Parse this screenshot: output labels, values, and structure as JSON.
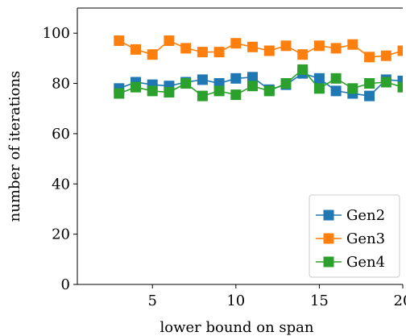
{
  "chart_data": {
    "type": "line",
    "xlabel": "lower bound on span",
    "ylabel": "number of iterations",
    "xlim": [
      0.5,
      20
    ],
    "ylim": [
      0,
      110
    ],
    "xticks": [
      5,
      10,
      15,
      20
    ],
    "yticks": [
      0,
      20,
      40,
      60,
      80,
      100
    ],
    "grid": false,
    "legend_position": "bottom-right",
    "series": [
      {
        "name": "Gen2",
        "color": "#1f77b4",
        "marker": "square",
        "x": [
          3,
          4,
          5,
          6,
          7,
          8,
          9,
          10,
          11,
          12,
          13,
          14,
          15,
          16,
          17,
          18,
          19,
          20
        ],
        "y": [
          78,
          80.5,
          79.5,
          79,
          80.5,
          81.5,
          80,
          82,
          82.5,
          77.5,
          79.5,
          84,
          82,
          77,
          76,
          75,
          81.5,
          81
        ]
      },
      {
        "name": "Gen3",
        "color": "#ff7f0e",
        "marker": "square",
        "x": [
          3,
          4,
          5,
          6,
          7,
          8,
          9,
          10,
          11,
          12,
          13,
          14,
          15,
          16,
          17,
          18,
          19,
          20
        ],
        "y": [
          97,
          93.5,
          91.5,
          97,
          94,
          92.5,
          92.5,
          96,
          94.5,
          93,
          95,
          91.5,
          95,
          94,
          95.5,
          90.5,
          91,
          93
        ]
      },
      {
        "name": "Gen4",
        "color": "#2ca02c",
        "marker": "square",
        "x": [
          3,
          4,
          5,
          6,
          7,
          8,
          9,
          10,
          11,
          12,
          13,
          14,
          15,
          16,
          17,
          18,
          19,
          20
        ],
        "y": [
          76,
          78.5,
          77,
          76.5,
          80,
          75,
          77,
          75.5,
          79,
          77,
          80,
          85.5,
          78,
          82,
          78,
          80,
          80.5,
          78.5
        ]
      }
    ]
  }
}
